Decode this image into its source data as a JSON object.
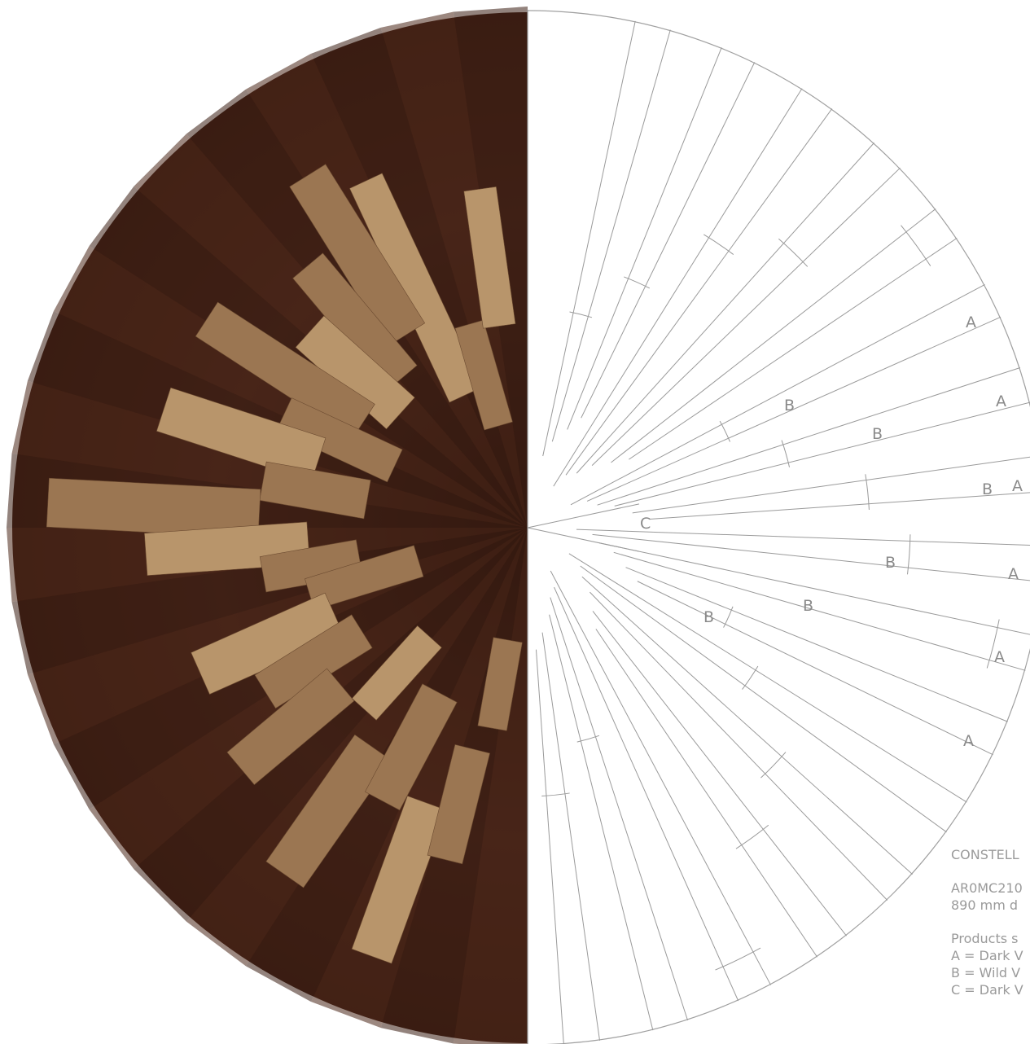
{
  "figure": {
    "title": "CONSTELL",
    "code": "AR0MC210",
    "diameter": "890 mm d",
    "products_heading": "Products s",
    "legend": [
      {
        "key": "A",
        "text": "A = Dark V"
      },
      {
        "key": "B",
        "text": "B = Wild V"
      },
      {
        "key": "C",
        "text": "C = Dark V"
      }
    ]
  },
  "region_labels": {
    "a": "A",
    "b": "B",
    "c": "C"
  },
  "colors": {
    "dark_walnut": "#3a1d13",
    "dark_walnut_mid": "#4a2618",
    "wild_walnut": "#9b7652",
    "wild_walnut_light": "#b8956b",
    "line": "#9a9a9a",
    "label": "#8a8a8a"
  }
}
